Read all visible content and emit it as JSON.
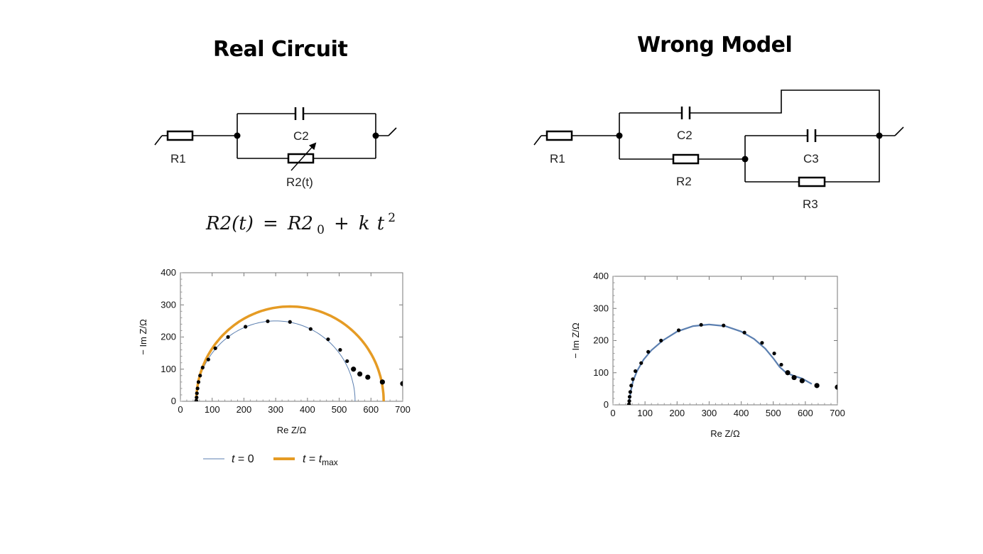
{
  "left": {
    "title": "Real Circuit",
    "circuit_labels": [
      "R1",
      "C2",
      "R2(t)"
    ],
    "equation": {
      "lhs": "R2(t)",
      "eq": "=",
      "r20": "R2",
      "sub0": "0",
      "plus": "+",
      "k": "k",
      "t": "t",
      "exp": "2"
    },
    "legend": [
      {
        "pre": "t",
        "post": " = 0",
        "color": "#5b7fb0"
      },
      {
        "pre": "t",
        "post": " = ",
        "post2": "t",
        "sub": "max",
        "color": "#e59b24"
      }
    ]
  },
  "right": {
    "title": "Wrong Model",
    "circuit_labels": [
      "R1",
      "C2",
      "R2",
      "C3",
      "R3"
    ]
  },
  "chart_data": [
    {
      "type": "scatter",
      "xlabel": "Re Z/Ω",
      "ylabel": "− Im Z/Ω",
      "xlim": [
        0,
        700
      ],
      "ylim": [
        0,
        400
      ],
      "xticks": [
        "0",
        "100",
        "200",
        "300",
        "400",
        "500",
        "600",
        "700"
      ],
      "yticks": [
        "0",
        "100",
        "200",
        "300",
        "400"
      ],
      "points": [
        [
          50,
          2
        ],
        [
          51,
          12
        ],
        [
          52,
          25
        ],
        [
          54,
          40
        ],
        [
          57,
          60
        ],
        [
          62,
          80
        ],
        [
          70,
          105
        ],
        [
          88,
          130
        ],
        [
          110,
          165
        ],
        [
          150,
          200
        ],
        [
          205,
          232
        ],
        [
          275,
          249
        ],
        [
          345,
          247
        ],
        [
          410,
          225
        ],
        [
          465,
          193
        ],
        [
          503,
          160
        ],
        [
          525,
          125
        ],
        [
          545,
          100
        ],
        [
          565,
          85
        ],
        [
          590,
          75
        ],
        [
          636,
          60
        ],
        [
          700,
          55
        ]
      ],
      "series": [
        {
          "name": "t = 0",
          "color": "#5b7fb0",
          "center": [
            300,
            0
          ],
          "radius": 250,
          "end_x": 550
        },
        {
          "name": "t = t_max",
          "color": "#e59b24",
          "center": [
            345,
            0
          ],
          "radius": 295,
          "end_x": 640
        }
      ]
    },
    {
      "type": "scatter",
      "xlabel": "Re Z/Ω",
      "ylabel": "− Im Z/Ω",
      "xlim": [
        0,
        700
      ],
      "ylim": [
        0,
        400
      ],
      "xticks": [
        "0",
        "100",
        "200",
        "300",
        "400",
        "500",
        "600",
        "700"
      ],
      "yticks": [
        "0",
        "100",
        "200",
        "300",
        "400"
      ],
      "points": [
        [
          50,
          2
        ],
        [
          51,
          12
        ],
        [
          52,
          25
        ],
        [
          54,
          40
        ],
        [
          57,
          60
        ],
        [
          62,
          80
        ],
        [
          70,
          105
        ],
        [
          88,
          130
        ],
        [
          110,
          165
        ],
        [
          150,
          200
        ],
        [
          205,
          232
        ],
        [
          275,
          249
        ],
        [
          345,
          247
        ],
        [
          410,
          225
        ],
        [
          465,
          193
        ],
        [
          503,
          160
        ],
        [
          525,
          125
        ],
        [
          545,
          100
        ],
        [
          565,
          85
        ],
        [
          590,
          75
        ],
        [
          636,
          60
        ],
        [
          700,
          55
        ]
      ],
      "fit": [
        [
          50,
          0
        ],
        [
          52,
          20
        ],
        [
          56,
          45
        ],
        [
          63,
          75
        ],
        [
          75,
          105
        ],
        [
          95,
          140
        ],
        [
          120,
          170
        ],
        [
          155,
          200
        ],
        [
          200,
          228
        ],
        [
          250,
          245
        ],
        [
          300,
          250
        ],
        [
          350,
          245
        ],
        [
          400,
          228
        ],
        [
          440,
          205
        ],
        [
          475,
          175
        ],
        [
          500,
          145
        ],
        [
          520,
          118
        ],
        [
          540,
          100
        ],
        [
          565,
          90
        ],
        [
          590,
          82
        ],
        [
          620,
          65
        ]
      ],
      "fit_color": "#5b7fb0"
    }
  ]
}
